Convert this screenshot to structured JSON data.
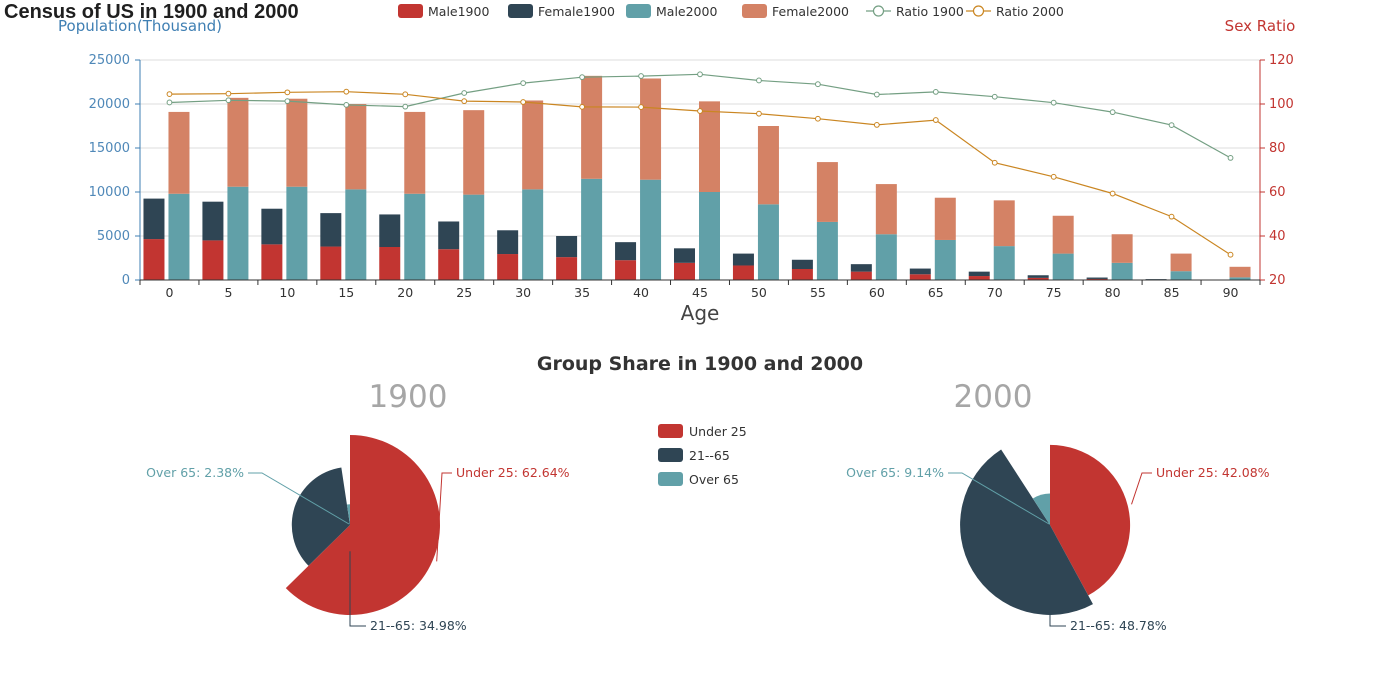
{
  "colors": {
    "male1900": "#c23531",
    "female1900": "#2f4554",
    "male2000": "#61a0a8",
    "female2000": "#d48265",
    "ratio1900": "#749f83",
    "ratio2000": "#ca8622",
    "left_axis": "#3f7fb3",
    "right_axis": "#c23531"
  },
  "chart_data": [
    {
      "type": "bar",
      "title": "Census of US in 1900 and 2000",
      "xlabel": "Age",
      "ylabel": "Population(Thousand)",
      "y2label": "Sex Ratio",
      "ylim": [
        0,
        25000
      ],
      "yticks": [
        "0",
        "5000",
        "10000",
        "15000",
        "20000",
        "25000"
      ],
      "y2lim": [
        20,
        120
      ],
      "y2ticks": [
        "20",
        "40",
        "60",
        "80",
        "100",
        "120"
      ],
      "categories": [
        "0",
        "5",
        "10",
        "15",
        "20",
        "25",
        "30",
        "35",
        "40",
        "45",
        "50",
        "55",
        "60",
        "65",
        "70",
        "75",
        "80",
        "85",
        "90"
      ],
      "legend_position": "top",
      "grid": true,
      "stacks": [
        {
          "stack": "1900",
          "series": [
            {
              "name": "Male1900",
              "color_key": "male1900",
              "values": [
                4650,
                4500,
                4050,
                3800,
                3750,
                3500,
                2950,
                2600,
                2250,
                1950,
                1650,
                1250,
                950,
                650,
                450,
                240,
                120,
                40,
                10
              ]
            },
            {
              "name": "Female1900",
              "color_key": "female1900",
              "values": [
                4600,
                4400,
                4050,
                3800,
                3700,
                3150,
                2700,
                2400,
                2050,
                1650,
                1350,
                1050,
                850,
                650,
                500,
                300,
                160,
                60,
                20
              ]
            }
          ]
        },
        {
          "stack": "2000",
          "series": [
            {
              "name": "Male2000",
              "color_key": "male2000",
              "values": [
                9800,
                10600,
                10600,
                10300,
                9800,
                9700,
                10300,
                11500,
                11400,
                10000,
                8600,
                6600,
                5200,
                4550,
                3850,
                3000,
                1950,
                1000,
                300
              ]
            },
            {
              "name": "Female2000",
              "color_key": "female2000",
              "values": [
                9300,
                10100,
                10000,
                9700,
                9300,
                9600,
                10100,
                11700,
                11500,
                10300,
                8900,
                6800,
                5700,
                4800,
                5200,
                4300,
                3250,
                2000,
                1200
              ]
            }
          ]
        }
      ],
      "lines": [
        {
          "name": "Ratio 1900",
          "color_key": "ratio1900",
          "values": [
            100.7,
            101.7,
            101.3,
            99.6,
            98.8,
            105,
            109.5,
            112.2,
            112.7,
            113.5,
            110.7,
            109,
            104.3,
            105.5,
            103.3,
            100.6,
            96.3,
            90.4,
            75.5
          ]
        },
        {
          "name": "Ratio 2000",
          "color_key": "ratio2000",
          "values": [
            104.5,
            104.7,
            105.3,
            105.6,
            104.4,
            101.3,
            100.9,
            98.7,
            98.6,
            96.8,
            95.6,
            93.3,
            90.5,
            92.7,
            73.3,
            66.9,
            59.3,
            48.8,
            31.5
          ]
        }
      ]
    },
    {
      "type": "pie",
      "title": "Group Share in 1900 and 2000",
      "legend": [
        "Under 25",
        "21--65",
        "Over 65"
      ],
      "legend_position": "center",
      "pies": [
        {
          "label": "1900",
          "slices": [
            {
              "name": "Under 25",
              "value": 62.64,
              "color_key": "male1900",
              "label": "Under 25: 62.64%"
            },
            {
              "name": "21--65",
              "value": 34.98,
              "color_key": "female1900",
              "label": "21--65: 34.98%"
            },
            {
              "name": "Over 65",
              "value": 2.38,
              "color_key": "male2000",
              "label": "Over 65: 2.38%"
            }
          ]
        },
        {
          "label": "2000",
          "slices": [
            {
              "name": "Under 25",
              "value": 42.08,
              "color_key": "male1900",
              "label": "Under 25: 42.08%"
            },
            {
              "name": "21--65",
              "value": 48.78,
              "color_key": "female1900",
              "label": "21--65: 48.78%"
            },
            {
              "name": "Over 65",
              "value": 9.14,
              "color_key": "male2000",
              "label": "Over 65: 9.14%"
            }
          ]
        }
      ]
    }
  ]
}
